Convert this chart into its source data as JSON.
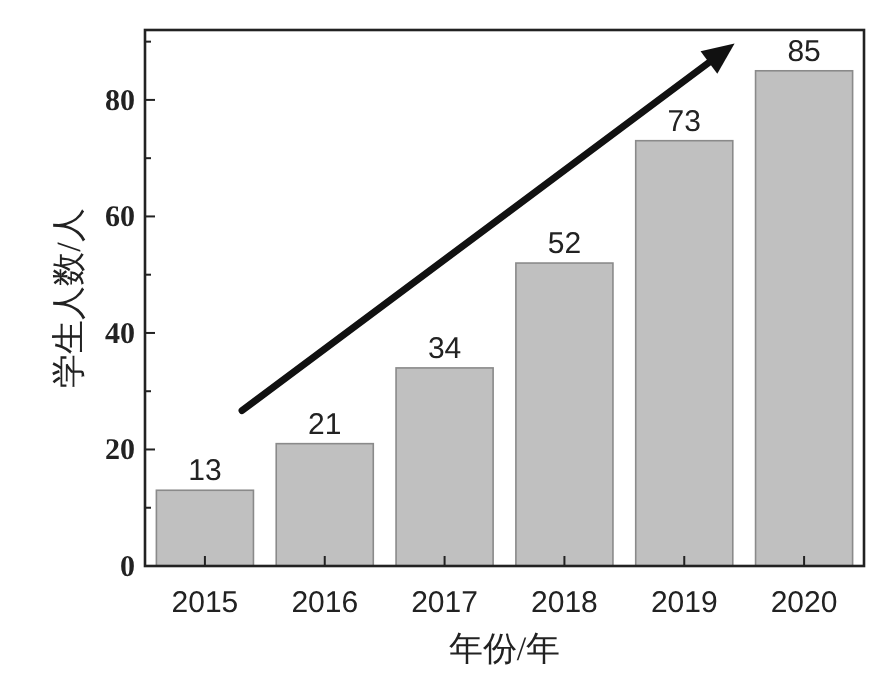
{
  "chart_data": {
    "type": "bar",
    "xlabel": "年份/年",
    "ylabel": "学生人数/人",
    "categories": [
      "2015",
      "2016",
      "2017",
      "2018",
      "2019",
      "2020"
    ],
    "values": [
      13,
      21,
      34,
      52,
      73,
      85
    ],
    "color": "#c0c0c0",
    "data_labels": true,
    "ylim": [
      0,
      92
    ],
    "yticks": [
      0,
      {
        "value": 10,
        "label": null
      },
      20,
      {
        "value": 30,
        "label": null
      },
      40,
      {
        "value": 50,
        "label": null
      },
      60,
      {
        "value": 70,
        "label": null
      },
      80,
      {
        "value": 90,
        "label": null
      }
    ],
    "grid": false
  }
}
